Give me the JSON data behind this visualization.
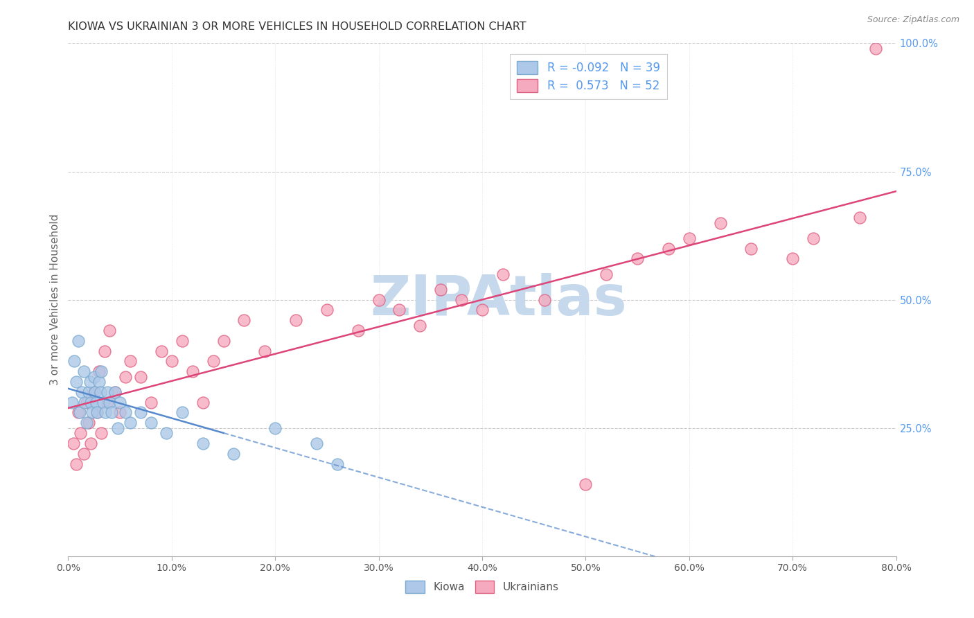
{
  "title": "KIOWA VS UKRAINIAN 3 OR MORE VEHICLES IN HOUSEHOLD CORRELATION CHART",
  "source": "Source: ZipAtlas.com",
  "ylabel": "3 or more Vehicles in Household",
  "xlim": [
    0.0,
    80.0
  ],
  "ylim": [
    0.0,
    100.0
  ],
  "xticks": [
    0.0,
    10.0,
    20.0,
    30.0,
    40.0,
    50.0,
    60.0,
    70.0,
    80.0
  ],
  "yticks_right": [
    25.0,
    50.0,
    75.0,
    100.0
  ],
  "legend_label1": "Kiowa",
  "legend_label2": "Ukrainians",
  "legend_r1": "R = -0.092",
  "legend_n1": "N = 39",
  "legend_r2": "R =  0.573",
  "legend_n2": "N = 52",
  "kiowa_color": "#adc8e8",
  "ukrainian_color": "#f5aac0",
  "kiowa_edge_color": "#7aaad0",
  "ukrainian_edge_color": "#e06080",
  "kiowa_line_color": "#5588cc",
  "ukrainian_line_color": "#dd4477",
  "background_color": "#ffffff",
  "grid_color": "#cccccc",
  "watermark": "ZIPAtlas",
  "watermark_color": "#c5d8ec",
  "title_color": "#333333",
  "source_color": "#888888",
  "tick_color": "#555555",
  "right_tick_color": "#5599ee",
  "ylabel_color": "#666666",
  "kiowa_x": [
    0.4,
    0.6,
    0.8,
    1.0,
    1.1,
    1.3,
    1.5,
    1.6,
    1.8,
    2.0,
    2.1,
    2.2,
    2.3,
    2.5,
    2.6,
    2.7,
    2.8,
    3.0,
    3.1,
    3.2,
    3.4,
    3.6,
    3.8,
    4.0,
    4.2,
    4.5,
    4.8,
    5.0,
    5.5,
    6.0,
    7.0,
    8.0,
    9.5,
    11.0,
    13.0,
    16.0,
    20.0,
    24.0,
    26.0
  ],
  "kiowa_y": [
    30.0,
    38.0,
    34.0,
    42.0,
    28.0,
    32.0,
    36.0,
    30.0,
    26.0,
    32.0,
    34.0,
    30.0,
    28.0,
    35.0,
    32.0,
    30.0,
    28.0,
    34.0,
    32.0,
    36.0,
    30.0,
    28.0,
    32.0,
    30.0,
    28.0,
    32.0,
    25.0,
    30.0,
    28.0,
    26.0,
    28.0,
    26.0,
    24.0,
    28.0,
    22.0,
    20.0,
    25.0,
    22.0,
    18.0
  ],
  "ukrainian_x": [
    0.5,
    0.8,
    1.0,
    1.2,
    1.5,
    1.8,
    2.0,
    2.2,
    2.5,
    2.8,
    3.0,
    3.2,
    3.5,
    3.8,
    4.0,
    4.5,
    5.0,
    5.5,
    6.0,
    7.0,
    8.0,
    9.0,
    10.0,
    11.0,
    12.0,
    13.0,
    14.0,
    15.0,
    17.0,
    19.0,
    22.0,
    25.0,
    28.0,
    30.0,
    32.0,
    34.0,
    36.0,
    38.0,
    40.0,
    42.0,
    46.0,
    50.0,
    52.0,
    55.0,
    58.0,
    60.0,
    63.0,
    66.0,
    70.0,
    72.0,
    76.5,
    78.0
  ],
  "ukrainian_y": [
    22.0,
    18.0,
    28.0,
    24.0,
    20.0,
    30.0,
    26.0,
    22.0,
    32.0,
    28.0,
    36.0,
    24.0,
    40.0,
    30.0,
    44.0,
    32.0,
    28.0,
    35.0,
    38.0,
    35.0,
    30.0,
    40.0,
    38.0,
    42.0,
    36.0,
    30.0,
    38.0,
    42.0,
    46.0,
    40.0,
    46.0,
    48.0,
    44.0,
    50.0,
    48.0,
    45.0,
    52.0,
    50.0,
    48.0,
    55.0,
    50.0,
    14.0,
    55.0,
    58.0,
    60.0,
    62.0,
    65.0,
    60.0,
    58.0,
    62.0,
    66.0,
    99.0
  ]
}
